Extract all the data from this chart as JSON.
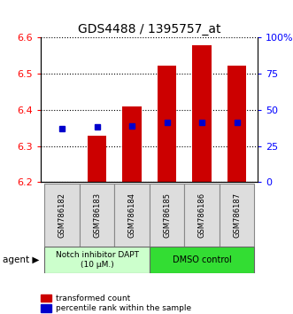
{
  "title": "GDS4488 / 1395757_at",
  "samples": [
    "GSM786182",
    "GSM786183",
    "GSM786184",
    "GSM786185",
    "GSM786186",
    "GSM786187"
  ],
  "red_values": [
    6.201,
    6.328,
    6.41,
    6.522,
    6.578,
    6.522
  ],
  "blue_values": [
    6.349,
    6.352,
    6.356,
    6.365,
    6.365,
    6.365
  ],
  "ylim_left": [
    6.2,
    6.6
  ],
  "ylim_right": [
    0,
    100
  ],
  "yticks_left": [
    6.2,
    6.3,
    6.4,
    6.5,
    6.6
  ],
  "yticks_right": [
    0,
    25,
    50,
    75,
    100
  ],
  "ytick_right_labels": [
    "0",
    "25",
    "50",
    "75",
    "100%"
  ],
  "bar_bottom": 6.2,
  "bar_width": 0.55,
  "red_color": "#cc0000",
  "blue_color": "#0000cc",
  "group1_label": "Notch inhibitor DAPT\n(10 μM.)",
  "group2_label": "DMSO control",
  "group1_color": "#ccffcc",
  "group2_color": "#33dd33",
  "agent_label": "agent",
  "legend_red": "transformed count",
  "legend_blue": "percentile rank within the sample",
  "sample_bg": "#dddddd",
  "plot_bg": "#ffffff"
}
